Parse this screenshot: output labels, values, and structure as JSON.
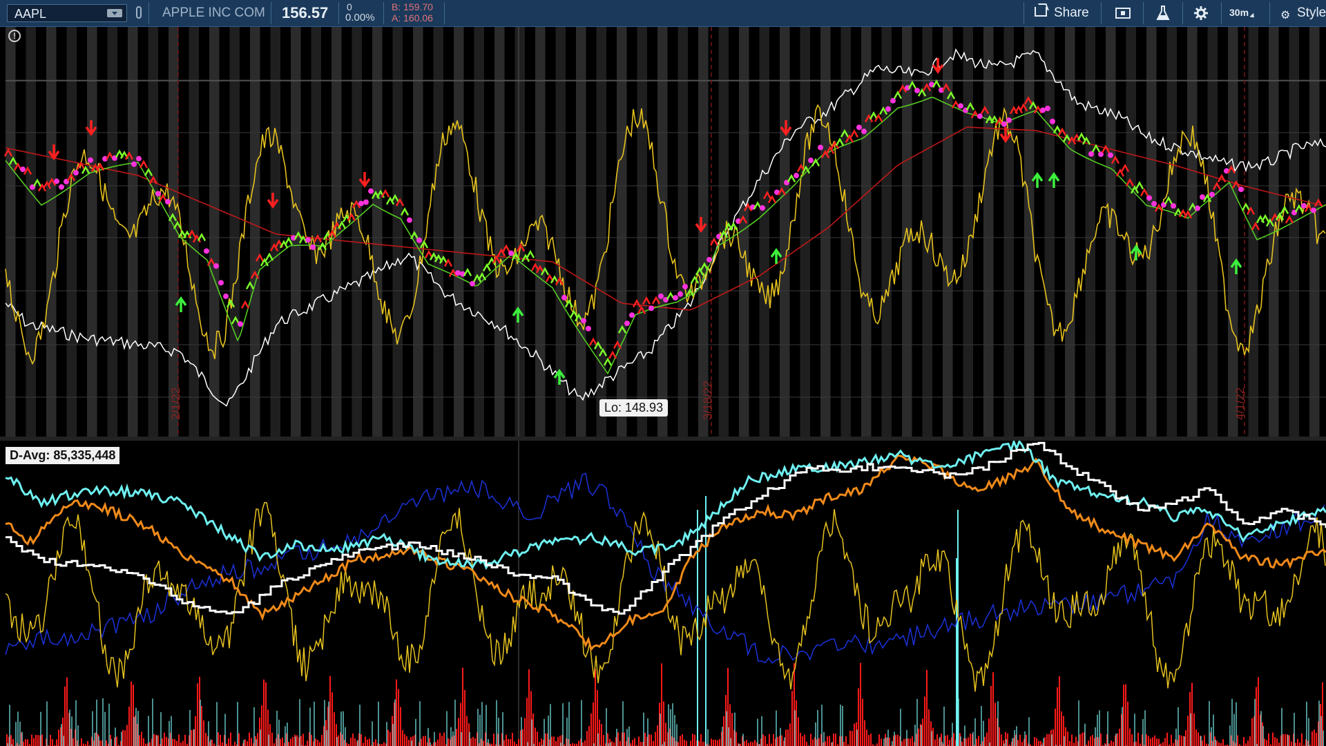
{
  "toolbar": {
    "symbol": "AAPL",
    "description": "APPLE INC COM",
    "last_price": "156.57",
    "net_change": "0",
    "pct_change": "0.00%",
    "bid": "B: 159.70",
    "ask": "A: 160.06",
    "share_label": "Share",
    "timeframe": "30m",
    "style_label": "Style",
    "icons": [
      "dropdown-icon",
      "link-icon",
      "share-icon",
      "flag-icon",
      "beaker-icon",
      "gear-icon",
      "style-icon"
    ]
  },
  "upper_chart": {
    "lo_label": "Lo: 148.93",
    "date_markers": [
      "2/1/22",
      "3/18/22",
      "4/1/22"
    ],
    "info_icon": "info-icon"
  },
  "lower_chart": {
    "davg_label": "D-Avg: 85,335,448"
  },
  "colors": {
    "toolbar_bg": "#1b3a5b",
    "price_text": "#e8eef5",
    "bid_ask": "#e0727a",
    "yellow_osc": "#e6c21f",
    "green_ma": "#55cc22",
    "red_ma": "#c01818",
    "white_line": "#ffffff",
    "cyan_line": "#6ff0f0",
    "orange_line": "#f08a1a",
    "navy_line": "#1a2fd0",
    "volume_red": "#ff1a1a"
  }
}
